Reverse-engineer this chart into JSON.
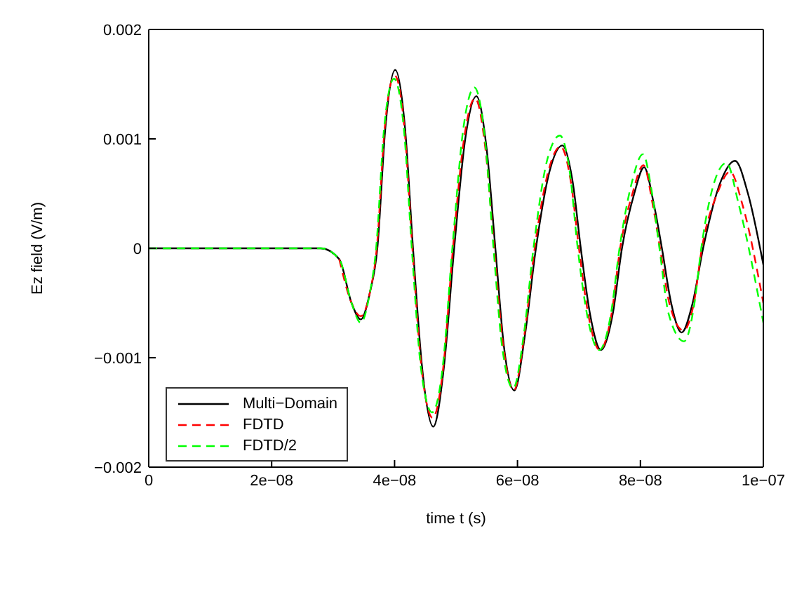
{
  "chart_data": {
    "type": "line",
    "xlabel": "time t (s)",
    "ylabel": "Ez field (V/m)",
    "xlim": [
      0,
      1e-07
    ],
    "xticks": [
      0,
      {
        "value": 2e-08,
        "label": "2e−08"
      },
      {
        "value": 4e-08,
        "label": "4e−08"
      },
      {
        "value": 6e-08,
        "label": "6e−08"
      },
      {
        "value": 8e-08,
        "label": "8e−08"
      },
      {
        "value": 1e-07,
        "label": "1e−07"
      }
    ],
    "ylim": [
      -0.002,
      0.002
    ],
    "yticks": [
      {
        "value": -0.002,
        "label": "−0.002"
      },
      {
        "value": -0.001,
        "label": "−0.001"
      },
      0,
      0.001,
      0.002
    ],
    "legend": "bottom left",
    "series": [
      {
        "name": "Multi−Domain",
        "color": "#000000",
        "line_style": "solid",
        "x": [
          0,
          2.8e-08,
          3.1e-08,
          3.3e-08,
          3.45e-08,
          3.6e-08,
          3.72e-08,
          3.85e-08,
          4.01e-08,
          4.17e-08,
          4.3e-08,
          4.45e-08,
          4.63e-08,
          4.8e-08,
          4.97e-08,
          5.15e-08,
          5.33e-08,
          5.5e-08,
          5.64e-08,
          5.78e-08,
          5.95e-08,
          6.12e-08,
          6.3e-08,
          6.52e-08,
          6.73e-08,
          6.9e-08,
          7.03e-08,
          7.18e-08,
          7.36e-08,
          7.55e-08,
          7.7e-08,
          7.9e-08,
          8.06e-08,
          8.22e-08,
          8.35e-08,
          8.5e-08,
          8.67e-08,
          8.85e-08,
          9.02e-08,
          9.3e-08,
          9.54e-08,
          9.75e-08,
          1e-07
        ],
        "values": [
          0,
          0,
          -0.0001,
          -0.0005,
          -0.00065,
          -0.0004,
          0,
          0.0011,
          0.00163,
          0.0011,
          0,
          -0.0011,
          -0.00163,
          -0.0011,
          0,
          0.001,
          0.00139,
          0.0009,
          0,
          -0.0009,
          -0.0013,
          -0.0008,
          0,
          0.0007,
          0.00094,
          0.0006,
          0,
          -0.0006,
          -0.00093,
          -0.0006,
          0,
          0.0005,
          0.00074,
          0.0004,
          0,
          -0.0005,
          -0.00077,
          -0.0005,
          0,
          0.0006,
          0.0008,
          0.0005,
          -0.00015
        ]
      },
      {
        "name": "FDTD",
        "color": "#ff0000",
        "line_style": "dashed",
        "x": [
          3.1e-08,
          3.3e-08,
          3.45e-08,
          3.6e-08,
          3.71e-08,
          3.84e-08,
          4e-08,
          4.16e-08,
          4.29e-08,
          4.44e-08,
          4.62e-08,
          4.79e-08,
          4.95e-08,
          5.13e-08,
          5.31e-08,
          5.48e-08,
          5.62e-08,
          5.77e-08,
          5.94e-08,
          6.11e-08,
          6.28e-08,
          6.5e-08,
          6.7e-08,
          6.87e-08,
          7e-08,
          7.15e-08,
          7.34e-08,
          7.53e-08,
          7.67e-08,
          7.87e-08,
          8.05e-08,
          8.2e-08,
          8.32e-08,
          8.47e-08,
          8.7e-08,
          8.87e-08,
          9e-08,
          9.25e-08,
          9.46e-08,
          9.66e-08,
          1e-07
        ],
        "values": [
          -0.0001,
          -0.0005,
          -0.00062,
          -0.0004,
          0,
          0.0011,
          0.00158,
          0.0011,
          0,
          -0.0011,
          -0.00155,
          -0.0011,
          0,
          0.001,
          0.00137,
          0.0009,
          0,
          -0.0009,
          -0.0013,
          -0.0008,
          0,
          0.0007,
          0.00093,
          0.0006,
          0,
          -0.0006,
          -0.00093,
          -0.0006,
          0,
          0.0005,
          0.00076,
          0.0004,
          0,
          -0.0005,
          -0.00075,
          -0.0005,
          0,
          0.0005,
          0.0007,
          0.0004,
          -0.0005
        ]
      },
      {
        "name": "FDTD/2",
        "color": "#00ff00",
        "line_style": "dashed",
        "x": [
          0,
          2.8e-08,
          3.1e-08,
          3.3e-08,
          3.45e-08,
          3.6e-08,
          3.7e-08,
          3.83e-08,
          3.99e-08,
          4.15e-08,
          4.28e-08,
          4.43e-08,
          4.61e-08,
          4.78e-08,
          4.94e-08,
          5.12e-08,
          5.3e-08,
          5.47e-08,
          5.61e-08,
          5.75e-08,
          5.93e-08,
          6.1e-08,
          6.26e-08,
          6.48e-08,
          6.69e-08,
          6.85e-08,
          6.98e-08,
          7.13e-08,
          7.33e-08,
          7.52e-08,
          7.66e-08,
          7.86e-08,
          8.04e-08,
          8.19e-08,
          8.31e-08,
          8.46e-08,
          8.71e-08,
          8.88e-08,
          8.99e-08,
          9.2e-08,
          9.4e-08,
          9.6e-08,
          1e-07
        ],
        "values": [
          0,
          0,
          -0.0001,
          -0.0005,
          -0.00068,
          -0.0004,
          0,
          0.0011,
          0.00155,
          0.0011,
          0,
          -0.0011,
          -0.0015,
          -0.0011,
          0,
          0.0011,
          0.00147,
          0.001,
          0,
          -0.0009,
          -0.00128,
          -0.0008,
          0,
          0.0008,
          0.00103,
          0.0007,
          0,
          -0.0006,
          -0.00093,
          -0.0006,
          0,
          0.0006,
          0.00086,
          0.0005,
          0,
          -0.0006,
          -0.00085,
          -0.0005,
          0,
          0.0006,
          0.00078,
          0.0004,
          -0.00068
        ]
      }
    ]
  }
}
